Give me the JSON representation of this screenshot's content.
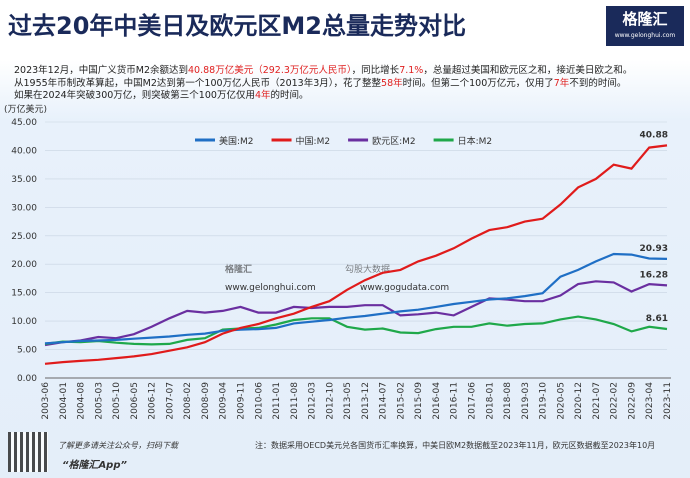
{
  "header": {
    "title": "过去20年中美日及欧元区M2总量走势对比",
    "logo": "格隆汇",
    "logo_url": "www.gelonghui.com"
  },
  "description": [
    [
      "2023年12月，中国广义货币M2余额达到",
      {
        "text": "40.88万亿美元（292.3万亿元人民币）",
        "color": "#e02020"
      },
      "，同比增长",
      {
        "text": "7.1%",
        "color": "#e02020"
      },
      "，总量超过美国和欧元区之和，接近美日欧之和。"
    ],
    [
      "从1955年币制改革算起，中国M2达到第一个100万亿人民币（2013年3月），花了整整",
      {
        "text": "58年",
        "color": "#e02020"
      },
      "时间。但第二个100万亿元，仅用了",
      {
        "text": "7年",
        "color": "#e02020"
      },
      "不到的时间。"
    ],
    [
      "如果在2024年突破300万亿，则突破第三个100万亿仅用",
      {
        "text": "4年",
        "color": "#e02020"
      },
      "的时间。"
    ]
  ],
  "watermark": [
    "格隆汇",
    "www.gelonghui.com",
    "勾股大数据",
    "www.gogudata.com"
  ],
  "chart_data": {
    "type": "line",
    "y_label": "(万亿美元)",
    "grid": true,
    "categories": [
      "2003-06",
      "2004-01",
      "2004-08",
      "2005-03",
      "2005-10",
      "2006-05",
      "2006-12",
      "2007-07",
      "2008-02",
      "2008-09",
      "2009-04",
      "2009-11",
      "2010-06",
      "2011-01",
      "2011-08",
      "2012-03",
      "2012-10",
      "2013-05",
      "2013-12",
      "2014-07",
      "2015-02",
      "2015-09",
      "2016-04",
      "2016-11",
      "2017-06",
      "2018-01",
      "2018-08",
      "2019-03",
      "2019-10",
      "2020-05",
      "2020-12",
      "2021-07",
      "2022-02",
      "2022-09",
      "2023-04",
      "2023-11"
    ],
    "ylim": [
      0,
      45
    ],
    "yticks": [
      {
        "value": 0,
        "label": "0.00"
      },
      {
        "value": 5,
        "label": "5.00"
      },
      {
        "value": 10,
        "label": "10.00"
      },
      {
        "value": 15,
        "label": "15.00"
      },
      {
        "value": 20,
        "label": "20.00"
      },
      {
        "value": 25,
        "label": "25.00"
      },
      {
        "value": 30,
        "label": "30.00"
      },
      {
        "value": 35,
        "label": "35.00"
      },
      {
        "value": 40,
        "label": "40.00"
      },
      {
        "value": 45,
        "label": "45.00"
      }
    ],
    "series": [
      {
        "name": "美国:M2",
        "color": "#1f6fc5",
        "values": [
          6.1,
          6.3,
          6.5,
          6.6,
          6.7,
          6.9,
          7.1,
          7.3,
          7.6,
          7.8,
          8.3,
          8.5,
          8.6,
          8.8,
          9.6,
          9.9,
          10.2,
          10.6,
          10.9,
          11.3,
          11.7,
          12.0,
          12.5,
          13.0,
          13.4,
          13.8,
          14.0,
          14.4,
          14.9,
          17.8,
          19.0,
          20.5,
          21.8,
          21.7,
          21.0,
          20.93
        ]
      },
      {
        "name": "中国:M2",
        "color": "#e01b1b",
        "values": [
          2.5,
          2.8,
          3.0,
          3.2,
          3.5,
          3.8,
          4.2,
          4.8,
          5.4,
          6.3,
          7.8,
          8.8,
          9.5,
          10.5,
          11.3,
          12.5,
          13.5,
          15.5,
          17.2,
          18.5,
          19.0,
          20.5,
          21.5,
          22.8,
          24.5,
          26.0,
          26.5,
          27.5,
          28.0,
          30.5,
          33.5,
          35.0,
          37.5,
          36.8,
          40.5,
          40.88
        ]
      },
      {
        "name": "欧元区:M2",
        "color": "#6a2fa0",
        "values": [
          5.8,
          6.3,
          6.6,
          7.2,
          7.0,
          7.7,
          9.0,
          10.5,
          11.8,
          11.5,
          11.8,
          12.5,
          11.5,
          11.5,
          12.5,
          12.3,
          12.5,
          12.5,
          12.8,
          12.8,
          11.0,
          11.2,
          11.5,
          11.0,
          12.5,
          14.0,
          13.8,
          13.5,
          13.5,
          14.5,
          16.5,
          17.0,
          16.8,
          15.2,
          16.5,
          16.28
        ]
      },
      {
        "name": "日本:M2",
        "color": "#1fa84a",
        "values": [
          6.0,
          6.4,
          6.3,
          6.5,
          6.2,
          6.0,
          5.9,
          6.0,
          6.7,
          7.0,
          8.5,
          8.7,
          8.8,
          9.4,
          10.2,
          10.5,
          10.5,
          9.0,
          8.5,
          8.7,
          8.0,
          7.9,
          8.6,
          9.0,
          9.0,
          9.6,
          9.2,
          9.5,
          9.6,
          10.3,
          10.8,
          10.3,
          9.5,
          8.2,
          9.0,
          8.61
        ]
      }
    ]
  },
  "footer": {
    "hint": "了解更多请关注公众号，扫码下载",
    "app": "“格隆汇App”",
    "note": "注：数据采用OECD美元兑各国货币汇率换算，中美日欧M2数据截至2023年11月，欧元区数据截至2023年10月"
  }
}
